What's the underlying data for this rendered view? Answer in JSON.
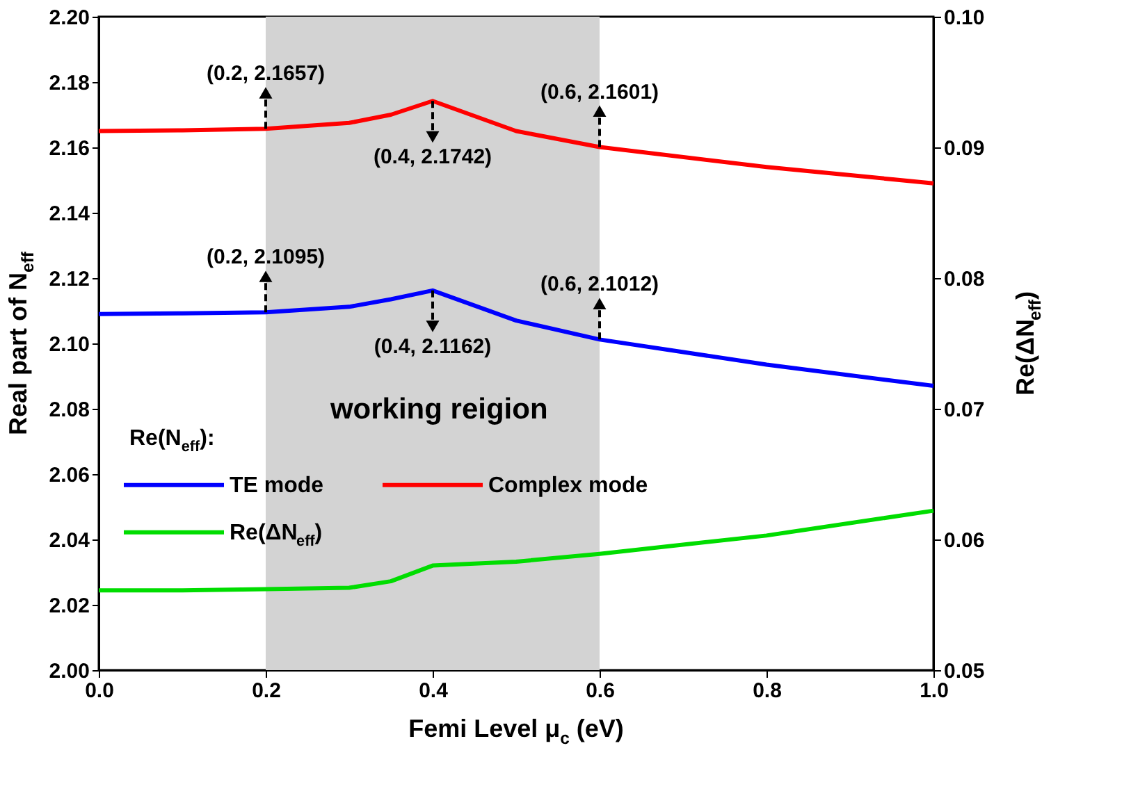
{
  "chart_data": {
    "type": "line",
    "x": [
      0,
      0.1,
      0.2,
      0.3,
      0.35,
      0.4,
      0.5,
      0.6,
      0.8,
      1.0
    ],
    "series": [
      {
        "name": "TE mode",
        "color": "#0000ff",
        "values": [
          2.109,
          2.1092,
          2.1095,
          2.1112,
          2.1135,
          2.1162,
          2.107,
          2.1012,
          2.0935,
          2.087
        ]
      },
      {
        "name": "Complex mode",
        "color": "#ff0000",
        "values": [
          2.165,
          2.1652,
          2.1657,
          2.1675,
          2.17,
          2.1742,
          2.165,
          2.1601,
          2.154,
          2.149
        ]
      },
      {
        "name": "Re(ΔN$_{eff}$)",
        "color": "#00dd00",
        "axis": "y2",
        "values": [
          0.0561,
          0.0561,
          0.0562,
          0.0563,
          0.0568,
          0.058,
          0.0583,
          0.0589,
          0.0603,
          0.0622
        ]
      }
    ],
    "xlabel": "Femi Level μ$_{c}$ (eV)",
    "ylabel": "Real part of N$_{eff}$",
    "y2label": "Re(ΔN$_{eff}$)",
    "legend_title": "Re(N$_{eff}$):",
    "legend": "left",
    "xlim": [
      0,
      1.0
    ],
    "xticks": [
      {
        "value": 0,
        "label": "0.0"
      },
      0.2,
      0.4,
      0.6,
      0.8,
      {
        "value": 1.0,
        "label": "1.0"
      }
    ],
    "ylim": [
      2.0,
      2.2
    ],
    "yticks": [
      {
        "value": 2.0,
        "label": "2.00"
      },
      2.02,
      2.04,
      2.06,
      2.08,
      {
        "value": 2.1,
        "label": "2.10"
      },
      2.12,
      2.14,
      2.16,
      2.18,
      {
        "value": 2.2,
        "label": "2.20"
      }
    ],
    "y2lim": [
      0.05,
      0.1
    ],
    "y2ticks": [
      0.05,
      0.06,
      0.07,
      0.08,
      0.09,
      {
        "value": 0.1,
        "label": "0.10"
      }
    ],
    "bands": [
      {
        "axis": "x",
        "from": 0.2,
        "to": 0.6,
        "label": "working reigion",
        "color": "#d3d3d3"
      }
    ],
    "annotations": [
      {
        "text": "(0.2, 2.1657)",
        "x": 0.2,
        "y": 2.1657
      },
      {
        "text": "(0.4, 2.1742)",
        "x": 0.4,
        "y": 2.1742
      },
      {
        "text": "(0.6, 2.1601)",
        "x": 0.6,
        "y": 2.1601
      },
      {
        "text": "(0.2, 2.1095)",
        "x": 0.2,
        "y": 2.1095
      },
      {
        "text": "(0.4, 2.1162)",
        "x": 0.4,
        "y": 2.1162
      },
      {
        "text": "(0.6, 2.1012)",
        "x": 0.6,
        "y": 2.1012
      }
    ],
    "grid": false,
    "marker": "none",
    "line_style": "solid"
  }
}
